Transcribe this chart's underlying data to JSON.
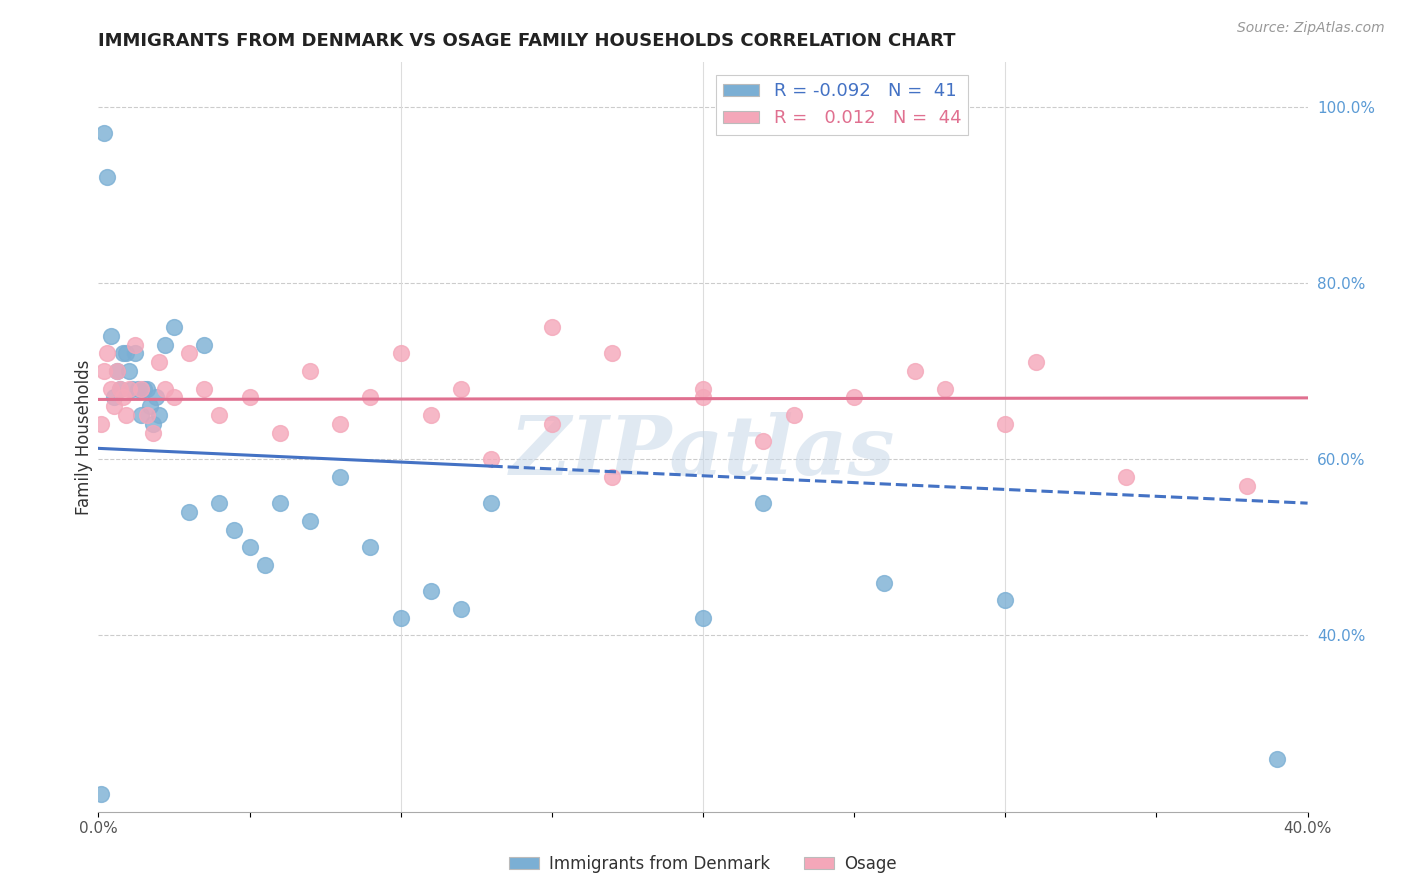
{
  "title": "IMMIGRANTS FROM DENMARK VS OSAGE FAMILY HOUSEHOLDS CORRELATION CHART",
  "source": "Source: ZipAtlas.com",
  "ylabel_label": "Family Households",
  "xlim": [
    0.0,
    0.4
  ],
  "ylim": [
    0.2,
    1.05
  ],
  "xtick_positions": [
    0.0,
    0.05,
    0.1,
    0.15,
    0.2,
    0.25,
    0.3,
    0.35,
    0.4
  ],
  "xtick_labels": [
    "0.0%",
    "",
    "",
    "",
    "",
    "",
    "",
    "",
    "40.0%"
  ],
  "yticks_right": [
    0.4,
    0.6,
    0.8,
    1.0
  ],
  "ytick_right_labels": [
    "40.0%",
    "60.0%",
    "80.0%",
    "100.0%"
  ],
  "legend_series1": "Immigrants from Denmark",
  "legend_series2": "Osage",
  "blue_color": "#7bafd4",
  "pink_color": "#f4a7b9",
  "blue_line_color": "#4472c4",
  "pink_line_color": "#e07090",
  "watermark": "ZIPatlas",
  "blue_R": -0.092,
  "blue_N": 41,
  "pink_R": 0.012,
  "pink_N": 44,
  "blue_x": [
    0.001,
    0.002,
    0.003,
    0.004,
    0.005,
    0.006,
    0.007,
    0.008,
    0.009,
    0.01,
    0.011,
    0.012,
    0.013,
    0.014,
    0.015,
    0.016,
    0.017,
    0.018,
    0.019,
    0.02,
    0.022,
    0.025,
    0.03,
    0.035,
    0.04,
    0.045,
    0.05,
    0.055,
    0.06,
    0.07,
    0.08,
    0.09,
    0.1,
    0.11,
    0.12,
    0.13,
    0.2,
    0.22,
    0.26,
    0.3,
    0.39
  ],
  "blue_y": [
    0.22,
    0.97,
    0.92,
    0.74,
    0.67,
    0.7,
    0.68,
    0.72,
    0.72,
    0.7,
    0.68,
    0.72,
    0.68,
    0.65,
    0.68,
    0.68,
    0.66,
    0.64,
    0.67,
    0.65,
    0.73,
    0.75,
    0.54,
    0.73,
    0.55,
    0.52,
    0.5,
    0.48,
    0.55,
    0.53,
    0.58,
    0.5,
    0.42,
    0.45,
    0.43,
    0.55,
    0.42,
    0.55,
    0.46,
    0.44,
    0.26
  ],
  "pink_x": [
    0.001,
    0.002,
    0.003,
    0.004,
    0.005,
    0.006,
    0.007,
    0.008,
    0.009,
    0.01,
    0.012,
    0.014,
    0.016,
    0.018,
    0.02,
    0.022,
    0.025,
    0.03,
    0.035,
    0.04,
    0.05,
    0.06,
    0.07,
    0.08,
    0.09,
    0.1,
    0.11,
    0.12,
    0.13,
    0.15,
    0.17,
    0.2,
    0.22,
    0.25,
    0.28,
    0.31,
    0.15,
    0.17,
    0.2,
    0.23,
    0.27,
    0.3,
    0.34,
    0.38
  ],
  "pink_y": [
    0.64,
    0.7,
    0.72,
    0.68,
    0.66,
    0.7,
    0.68,
    0.67,
    0.65,
    0.68,
    0.73,
    0.68,
    0.65,
    0.63,
    0.71,
    0.68,
    0.67,
    0.72,
    0.68,
    0.65,
    0.67,
    0.63,
    0.7,
    0.64,
    0.67,
    0.72,
    0.65,
    0.68,
    0.6,
    0.64,
    0.58,
    0.67,
    0.62,
    0.67,
    0.68,
    0.71,
    0.75,
    0.72,
    0.68,
    0.65,
    0.7,
    0.64,
    0.58,
    0.57
  ]
}
